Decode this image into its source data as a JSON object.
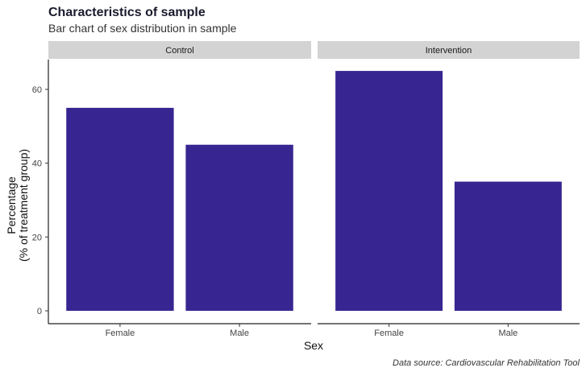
{
  "chart_data": {
    "type": "bar",
    "title": "Characteristics of sample",
    "subtitle": "Bar chart of sex distribution in sample",
    "xlabel": "Sex",
    "ylabel_line1": "Percentage",
    "ylabel_line2": "(% of treatment group)",
    "caption": "Data source: Cardiovascular Rehabilitation Tool",
    "categories": [
      "Female",
      "Male"
    ],
    "ylim": [
      0,
      68
    ],
    "yticks": [
      0,
      20,
      40,
      60
    ],
    "bar_color": "#372691",
    "strip_color": "#d3d3d3",
    "grid": false,
    "legend": "none",
    "facets": [
      {
        "label": "Control",
        "values": [
          55,
          45
        ]
      },
      {
        "label": "Intervention",
        "values": [
          65,
          35
        ]
      }
    ]
  }
}
